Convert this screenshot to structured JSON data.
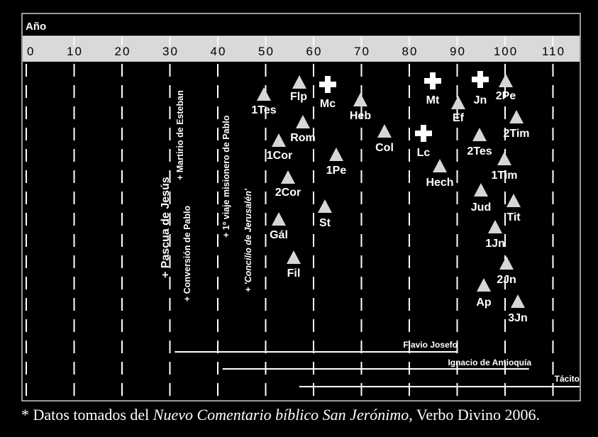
{
  "header": {
    "year_label": "Año",
    "ticks": [
      "0",
      "10",
      "20",
      "30",
      "40",
      "50",
      "60",
      "70",
      "80",
      "90",
      "100",
      "110"
    ]
  },
  "events": [
    {
      "label": "+ Pascua de Jesús",
      "year": 30
    },
    {
      "label": "+ Conversión de Pablo",
      "year": 33
    },
    {
      "label": "+ Martirio de Esteban",
      "year": 34
    },
    {
      "label": "+ 1º viaje misionero de Pablo",
      "year": 41
    },
    {
      "label": "+ 'Concilio de Jerusalén'",
      "year": 46
    }
  ],
  "books": [
    {
      "label": "1Tes",
      "year": 51,
      "marker": "triangle"
    },
    {
      "label": "Flp",
      "year": 56,
      "marker": "triangle"
    },
    {
      "label": "Rom",
      "year": 57,
      "marker": "triangle"
    },
    {
      "label": "1Cor",
      "year": 53,
      "marker": "triangle"
    },
    {
      "label": "2Cor",
      "year": 55,
      "marker": "triangle"
    },
    {
      "label": "Gál",
      "year": 54,
      "marker": "triangle"
    },
    {
      "label": "Fil",
      "year": 56,
      "marker": "triangle"
    },
    {
      "label": "Mc",
      "year": 63,
      "marker": "cross"
    },
    {
      "label": "1Pe",
      "year": 65,
      "marker": "triangle"
    },
    {
      "label": "St",
      "year": 62,
      "marker": "triangle"
    },
    {
      "label": "Heb",
      "year": 70,
      "marker": "triangle"
    },
    {
      "label": "Col",
      "year": 75,
      "marker": "triangle"
    },
    {
      "label": "Mt",
      "year": 84,
      "marker": "cross"
    },
    {
      "label": "Lc",
      "year": 81,
      "marker": "cross"
    },
    {
      "label": "Hech",
      "year": 86,
      "marker": "triangle"
    },
    {
      "label": "Ef",
      "year": 90,
      "marker": "triangle"
    },
    {
      "label": "Jn",
      "year": 95,
      "marker": "cross"
    },
    {
      "label": "2Tes",
      "year": 95,
      "marker": "triangle"
    },
    {
      "label": "Jud",
      "year": 95,
      "marker": "triangle"
    },
    {
      "label": "Ap",
      "year": 96,
      "marker": "triangle"
    },
    {
      "label": "2Pe",
      "year": 100,
      "marker": "triangle"
    },
    {
      "label": "2Tim",
      "year": 102,
      "marker": "triangle"
    },
    {
      "label": "1Tim",
      "year": 100,
      "marker": "triangle"
    },
    {
      "label": "Tit",
      "year": 102,
      "marker": "triangle"
    },
    {
      "label": "1Jn",
      "year": 98,
      "marker": "triangle"
    },
    {
      "label": "2Jn",
      "year": 100,
      "marker": "triangle"
    },
    {
      "label": "3Jn",
      "year": 102,
      "marker": "triangle"
    }
  ],
  "lifespans": [
    {
      "label": "Flavio Josefo",
      "start": 31,
      "end": 90
    },
    {
      "label": "Ignacio de Antioquía",
      "start": 41,
      "end": 105
    },
    {
      "label": "Tácito",
      "start": 57,
      "end": 117
    }
  ],
  "footnote": {
    "before": "* Datos tomados del ",
    "italic": "Nuevo Comentario bíblico San Jerónimo",
    "after": ", Verbo Divino 2006."
  },
  "colors": {
    "background": "#000000",
    "axis_band": "#d9d9d9",
    "foreground": "#ffffff",
    "marker": "#d6d6d6"
  }
}
